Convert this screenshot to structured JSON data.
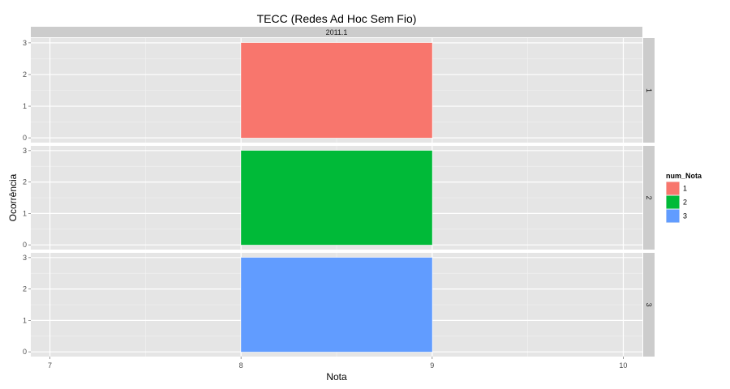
{
  "chart_data": {
    "type": "bar",
    "title": "TECC (Redes Ad Hoc Sem Fio)",
    "xlabel": "Nota",
    "ylabel": "Ocorrência",
    "xlim": [
      6.9,
      10.1
    ],
    "ylim": [
      -0.15,
      3.15
    ],
    "x_ticks": [
      7,
      8,
      9,
      10
    ],
    "y_ticks": [
      0,
      1,
      2,
      3
    ],
    "column_facet": "2011.1",
    "grid": true,
    "legend": {
      "title": "num_Nota",
      "position": "right",
      "entries": [
        "1",
        "2",
        "3"
      ]
    },
    "series": [
      {
        "name": "1",
        "facet": "1",
        "x_start": 8,
        "x_end": 9,
        "value": 3,
        "color": "#F8766D"
      },
      {
        "name": "2",
        "facet": "2",
        "x_start": 8,
        "x_end": 9,
        "value": 3,
        "color": "#00BA38"
      },
      {
        "name": "3",
        "facet": "3",
        "x_start": 8,
        "x_end": 9,
        "value": 3,
        "color": "#619CFF"
      }
    ]
  },
  "colors": {
    "panel_background": "#E5E5E5",
    "grid_major": "#FFFFFF",
    "grid_minor": "#F2F2F2",
    "strip_background": "#CCCCCC"
  }
}
